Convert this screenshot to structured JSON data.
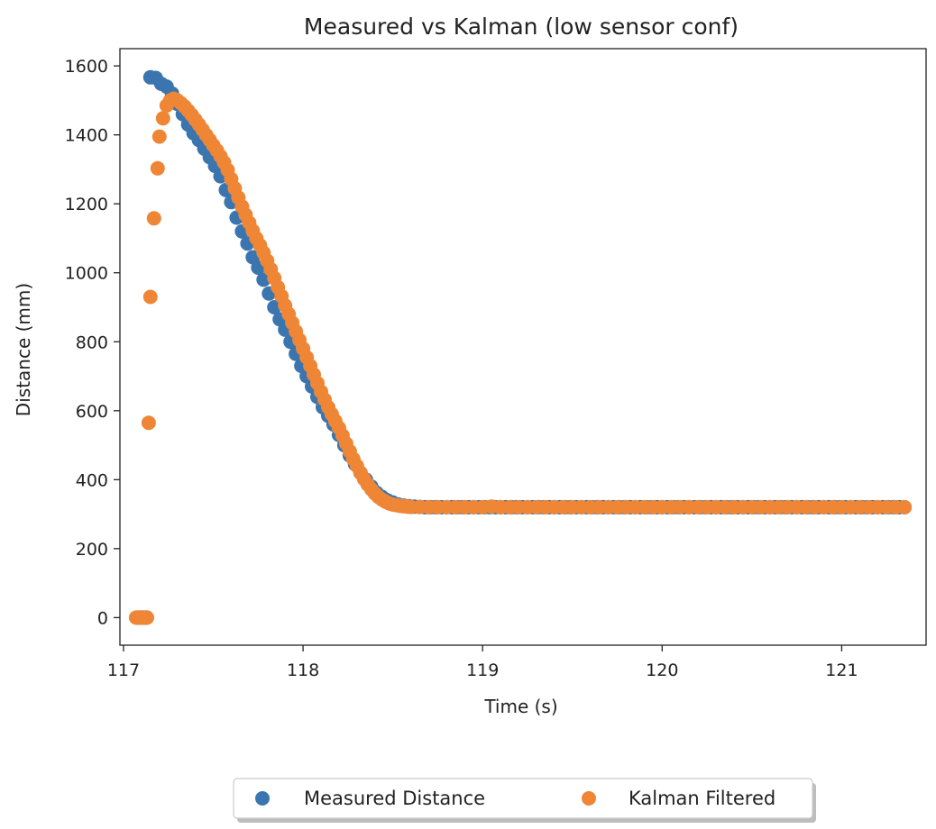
{
  "chart_data": {
    "type": "scatter",
    "title": "Measured vs Kalman (low sensor conf)",
    "xlabel": "Time (s)",
    "ylabel": "Distance (mm)",
    "xlim": [
      116.98,
      121.47
    ],
    "ylim": [
      -80,
      1650
    ],
    "xticks": [
      117,
      118,
      119,
      120,
      121
    ],
    "yticks": [
      0,
      200,
      400,
      600,
      800,
      1000,
      1200,
      1400,
      1600
    ],
    "grid": false,
    "legend": {
      "placement": "bottom-center-outside"
    },
    "colors": {
      "measured": "#3b75af",
      "kalman": "#ef8636"
    },
    "series": [
      {
        "name": "Measured Distance",
        "color": "#3b75af",
        "points": [
          [
            117.08,
            0
          ],
          [
            117.09,
            0
          ],
          [
            117.1,
            0
          ],
          [
            117.11,
            0
          ],
          [
            117.12,
            0
          ],
          [
            117.13,
            0
          ],
          [
            117.15,
            1567
          ],
          [
            117.18,
            1565
          ],
          [
            117.21,
            1548
          ],
          [
            117.24,
            1540
          ],
          [
            117.27,
            1520
          ],
          [
            117.3,
            1490
          ],
          [
            117.33,
            1460
          ],
          [
            117.36,
            1430
          ],
          [
            117.39,
            1405
          ],
          [
            117.42,
            1385
          ],
          [
            117.45,
            1360
          ],
          [
            117.48,
            1335
          ],
          [
            117.51,
            1310
          ],
          [
            117.54,
            1280
          ],
          [
            117.57,
            1240
          ],
          [
            117.6,
            1205
          ],
          [
            117.63,
            1160
          ],
          [
            117.66,
            1120
          ],
          [
            117.69,
            1085
          ],
          [
            117.72,
            1045
          ],
          [
            117.75,
            1015
          ],
          [
            117.78,
            980
          ],
          [
            117.81,
            940
          ],
          [
            117.84,
            900
          ],
          [
            117.87,
            865
          ],
          [
            117.9,
            835
          ],
          [
            117.93,
            800
          ],
          [
            117.96,
            765
          ],
          [
            117.99,
            730
          ],
          [
            118.02,
            700
          ],
          [
            118.05,
            670
          ],
          [
            118.08,
            640
          ],
          [
            118.11,
            610
          ],
          [
            118.14,
            585
          ],
          [
            118.17,
            560
          ],
          [
            118.2,
            530
          ],
          [
            118.23,
            500
          ],
          [
            118.26,
            470
          ],
          [
            118.29,
            445
          ],
          [
            118.32,
            420
          ],
          [
            118.35,
            400
          ],
          [
            118.38,
            380
          ],
          [
            118.41,
            362
          ],
          [
            118.44,
            350
          ],
          [
            118.47,
            340
          ],
          [
            118.5,
            334
          ],
          [
            118.53,
            328
          ],
          [
            118.56,
            325
          ],
          [
            118.59,
            323
          ],
          [
            118.62,
            322
          ],
          [
            118.65,
            321
          ],
          [
            118.68,
            320
          ],
          [
            118.71,
            320
          ],
          [
            118.74,
            320
          ],
          [
            118.77,
            320
          ],
          [
            118.8,
            320
          ],
          [
            118.83,
            320
          ],
          [
            118.86,
            320
          ],
          [
            118.89,
            320
          ],
          [
            118.92,
            320
          ],
          [
            118.95,
            320
          ],
          [
            118.98,
            320
          ],
          [
            119.01,
            320
          ],
          [
            119.04,
            320
          ],
          [
            119.07,
            320
          ],
          [
            119.1,
            320
          ],
          [
            119.13,
            320
          ],
          [
            119.16,
            320
          ],
          [
            119.19,
            320
          ],
          [
            119.22,
            320
          ],
          [
            119.25,
            320
          ],
          [
            119.28,
            320
          ],
          [
            119.31,
            320
          ],
          [
            119.34,
            320
          ],
          [
            119.37,
            320
          ],
          [
            119.4,
            320
          ],
          [
            119.43,
            320
          ],
          [
            119.46,
            320
          ],
          [
            119.49,
            320
          ],
          [
            119.52,
            320
          ],
          [
            119.55,
            320
          ],
          [
            119.58,
            320
          ],
          [
            119.61,
            320
          ],
          [
            119.64,
            320
          ],
          [
            119.67,
            320
          ],
          [
            119.7,
            320
          ],
          [
            119.73,
            320
          ],
          [
            119.76,
            320
          ],
          [
            119.79,
            320
          ],
          [
            119.82,
            320
          ],
          [
            119.85,
            320
          ],
          [
            119.88,
            320
          ],
          [
            119.91,
            320
          ],
          [
            119.94,
            320
          ],
          [
            119.97,
            320
          ],
          [
            120.0,
            320
          ],
          [
            120.03,
            320
          ],
          [
            120.06,
            320
          ],
          [
            120.09,
            320
          ],
          [
            120.12,
            320
          ],
          [
            120.15,
            320
          ],
          [
            120.18,
            320
          ],
          [
            120.21,
            320
          ],
          [
            120.24,
            320
          ],
          [
            120.27,
            320
          ],
          [
            120.3,
            320
          ],
          [
            120.33,
            320
          ],
          [
            120.36,
            320
          ],
          [
            120.39,
            320
          ],
          [
            120.42,
            320
          ],
          [
            120.45,
            320
          ],
          [
            120.48,
            320
          ],
          [
            120.51,
            320
          ],
          [
            120.54,
            320
          ],
          [
            120.57,
            320
          ],
          [
            120.6,
            320
          ],
          [
            120.63,
            320
          ],
          [
            120.66,
            320
          ],
          [
            120.69,
            320
          ],
          [
            120.72,
            320
          ],
          [
            120.75,
            320
          ],
          [
            120.78,
            320
          ],
          [
            120.81,
            320
          ],
          [
            120.84,
            320
          ],
          [
            120.87,
            320
          ],
          [
            120.9,
            320
          ],
          [
            120.93,
            320
          ],
          [
            120.96,
            320
          ],
          [
            120.99,
            320
          ],
          [
            121.02,
            320
          ],
          [
            121.05,
            320
          ],
          [
            121.08,
            320
          ],
          [
            121.11,
            320
          ],
          [
            121.14,
            320
          ],
          [
            121.17,
            320
          ],
          [
            121.2,
            320
          ],
          [
            121.23,
            320
          ],
          [
            121.26,
            320
          ],
          [
            121.29,
            320
          ],
          [
            121.32,
            320
          ],
          [
            121.35,
            320
          ]
        ]
      },
      {
        "name": "Kalman Filtered",
        "color": "#ef8636",
        "points": [
          [
            117.07,
            0
          ],
          [
            117.08,
            0
          ],
          [
            117.09,
            0
          ],
          [
            117.1,
            0
          ],
          [
            117.11,
            0
          ],
          [
            117.12,
            0
          ],
          [
            117.13,
            0
          ],
          [
            117.14,
            565
          ],
          [
            117.15,
            930
          ],
          [
            117.17,
            1158
          ],
          [
            117.19,
            1303
          ],
          [
            117.2,
            1395
          ],
          [
            117.22,
            1448
          ],
          [
            117.24,
            1485
          ],
          [
            117.26,
            1500
          ],
          [
            117.28,
            1505
          ],
          [
            117.3,
            1500
          ],
          [
            117.32,
            1492
          ],
          [
            117.34,
            1482
          ],
          [
            117.36,
            1470
          ],
          [
            117.38,
            1458
          ],
          [
            117.4,
            1444
          ],
          [
            117.42,
            1430
          ],
          [
            117.44,
            1415
          ],
          [
            117.46,
            1400
          ],
          [
            117.48,
            1385
          ],
          [
            117.5,
            1370
          ],
          [
            117.52,
            1355
          ],
          [
            117.54,
            1338
          ],
          [
            117.56,
            1320
          ],
          [
            117.58,
            1298
          ],
          [
            117.6,
            1272
          ],
          [
            117.62,
            1245
          ],
          [
            117.64,
            1218
          ],
          [
            117.66,
            1192
          ],
          [
            117.68,
            1168
          ],
          [
            117.7,
            1145
          ],
          [
            117.72,
            1122
          ],
          [
            117.74,
            1100
          ],
          [
            117.76,
            1080
          ],
          [
            117.78,
            1058
          ],
          [
            117.8,
            1035
          ],
          [
            117.82,
            1010
          ],
          [
            117.84,
            985
          ],
          [
            117.86,
            958
          ],
          [
            117.88,
            932
          ],
          [
            117.9,
            905
          ],
          [
            117.92,
            880
          ],
          [
            117.94,
            855
          ],
          [
            117.96,
            830
          ],
          [
            117.98,
            805
          ],
          [
            118.0,
            780
          ],
          [
            118.02,
            755
          ],
          [
            118.04,
            730
          ],
          [
            118.06,
            705
          ],
          [
            118.08,
            680
          ],
          [
            118.1,
            655
          ],
          [
            118.12,
            632
          ],
          [
            118.14,
            610
          ],
          [
            118.16,
            590
          ],
          [
            118.18,
            570
          ],
          [
            118.2,
            550
          ],
          [
            118.22,
            528
          ],
          [
            118.24,
            505
          ],
          [
            118.26,
            482
          ],
          [
            118.28,
            460
          ],
          [
            118.3,
            440
          ],
          [
            118.32,
            420
          ],
          [
            118.34,
            402
          ],
          [
            118.36,
            386
          ],
          [
            118.38,
            372
          ],
          [
            118.4,
            360
          ],
          [
            118.42,
            350
          ],
          [
            118.44,
            342
          ],
          [
            118.46,
            336
          ],
          [
            118.48,
            331
          ],
          [
            118.5,
            328
          ],
          [
            118.52,
            326
          ],
          [
            118.54,
            324
          ],
          [
            118.56,
            323
          ],
          [
            118.58,
            322
          ],
          [
            118.6,
            321
          ],
          [
            118.65,
            321
          ],
          [
            118.7,
            320
          ],
          [
            118.75,
            320
          ],
          [
            118.8,
            320
          ],
          [
            118.85,
            320
          ],
          [
            118.9,
            320
          ],
          [
            118.95,
            320
          ],
          [
            119.0,
            320
          ],
          [
            119.05,
            322
          ],
          [
            119.1,
            320
          ],
          [
            119.15,
            320
          ],
          [
            119.2,
            320
          ],
          [
            119.25,
            320
          ],
          [
            119.3,
            320
          ],
          [
            119.35,
            320
          ],
          [
            119.4,
            320
          ],
          [
            119.45,
            320
          ],
          [
            119.5,
            320
          ],
          [
            119.55,
            320
          ],
          [
            119.6,
            320
          ],
          [
            119.65,
            320
          ],
          [
            119.7,
            320
          ],
          [
            119.75,
            320
          ],
          [
            119.8,
            320
          ],
          [
            119.85,
            320
          ],
          [
            119.9,
            320
          ],
          [
            119.95,
            320
          ],
          [
            120.0,
            320
          ],
          [
            120.05,
            320
          ],
          [
            120.1,
            320
          ],
          [
            120.15,
            320
          ],
          [
            120.2,
            320
          ],
          [
            120.25,
            320
          ],
          [
            120.3,
            320
          ],
          [
            120.35,
            320
          ],
          [
            120.4,
            320
          ],
          [
            120.45,
            320
          ],
          [
            120.5,
            320
          ],
          [
            120.55,
            320
          ],
          [
            120.6,
            320
          ],
          [
            120.65,
            320
          ],
          [
            120.7,
            320
          ],
          [
            120.75,
            320
          ],
          [
            120.8,
            320
          ],
          [
            120.85,
            320
          ],
          [
            120.9,
            320
          ],
          [
            120.95,
            320
          ],
          [
            121.0,
            320
          ],
          [
            121.05,
            320
          ],
          [
            121.1,
            320
          ],
          [
            121.15,
            320
          ],
          [
            121.2,
            320
          ],
          [
            121.25,
            320
          ],
          [
            121.3,
            320
          ],
          [
            121.35,
            320
          ]
        ]
      }
    ]
  }
}
